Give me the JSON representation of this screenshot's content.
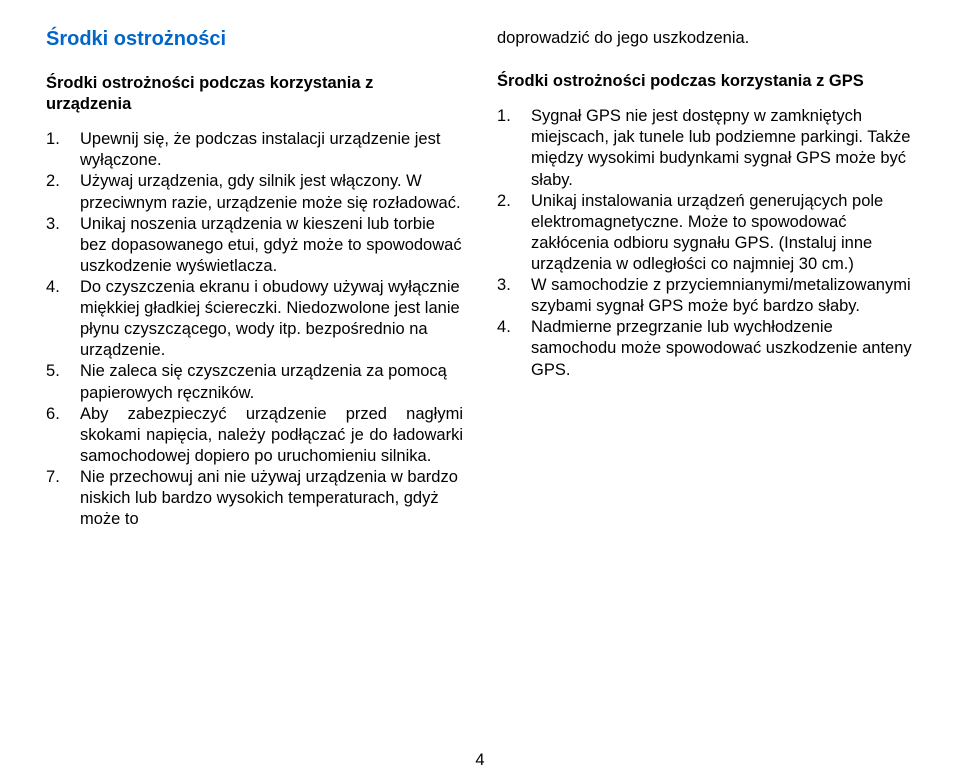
{
  "left": {
    "main_title": "Środki ostrożności",
    "section_heading": "Środki ostrożności podczas korzystania z urządzenia",
    "items": [
      "Upewnij się, że podczas instalacji urządzenie jest wyłączone.",
      "Używaj urządzenia, gdy silnik jest włączony. W przeciwnym razie, urządzenie może się rozładować.",
      "Unikaj noszenia urządzenia w kieszeni lub torbie bez dopasowanego etui, gdyż może to spowodować uszkodzenie wyświetlacza.",
      "Do czyszczenia ekranu i obudowy używaj wyłącznie miękkiej gładkiej ściereczki. Niedozwolone jest lanie płynu czyszczącego, wody itp. bezpośrednio na urządzenie.",
      "Nie zaleca się czyszczenia urządzenia za pomocą papierowych ręczników.",
      "Aby zabezpieczyć urządzenie przed nagłymi skokami napięcia, należy podłączać je do ładowarki samochodowej dopiero po uruchomieniu silnika.",
      "Nie przechowuj ani nie używaj urządzenia w bardzo niskich lub bardzo wysokich temperaturach, gdyż może to"
    ]
  },
  "right": {
    "lead": "doprowadzić do jego uszkodzenia.",
    "section_heading": "Środki ostrożności podczas korzystania z GPS",
    "items": [
      "Sygnał GPS nie jest dostępny w zamkniętych miejscach, jak tunele lub podziemne parkingi. Także między wysokimi budynkami sygnał GPS może być słaby.",
      "Unikaj instalowania urządzeń generujących pole elektromagnetyczne. Może to spowodować zakłócenia odbioru sygnału GPS. (Instaluj inne urządzenia w odległości co najmniej 30 cm.)",
      "W samochodzie z przyciemnianymi/metalizowanymi szybami sygnał GPS może być bardzo słaby.",
      "Nadmierne przegrzanie lub wychłodzenie samochodu może spowodować uszkodzenie anteny GPS."
    ]
  },
  "page_number": "4"
}
